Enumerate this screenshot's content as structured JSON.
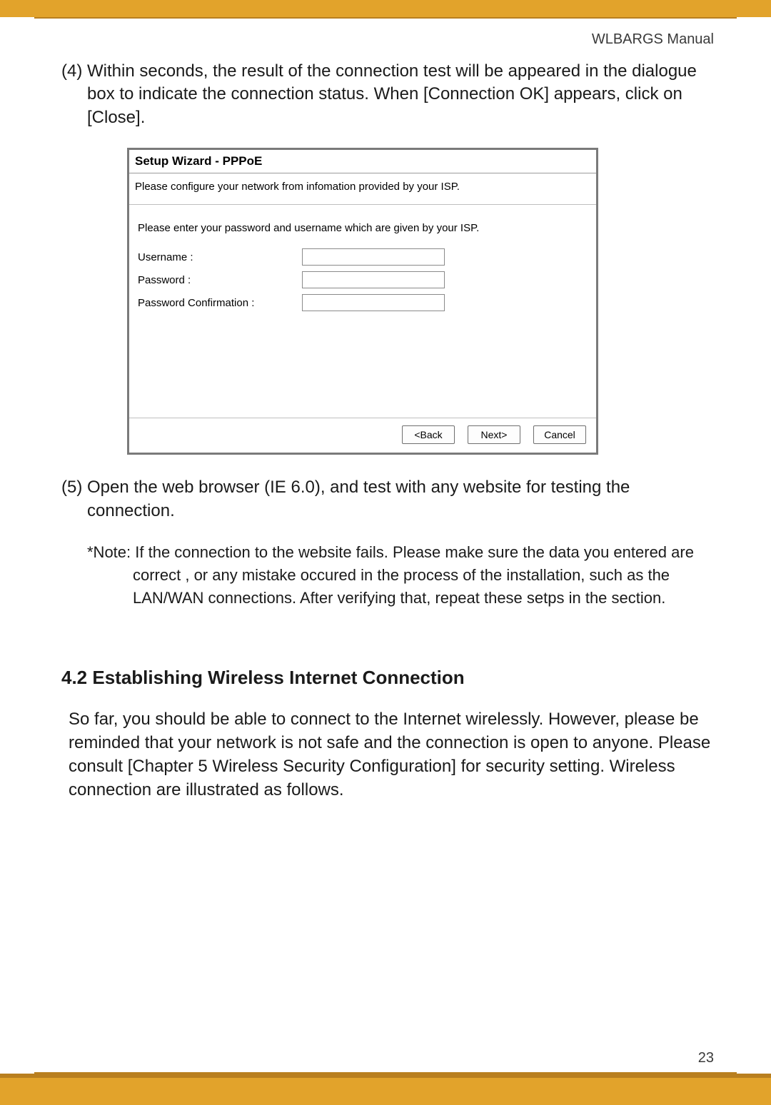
{
  "colors": {
    "band": "#e2a32b",
    "band_dark": "#b97f1f",
    "text": "#1a1a1a",
    "page_bg": "#ffffff"
  },
  "header": {
    "label": "WLBARGS Manual"
  },
  "footer": {
    "page_number": "23"
  },
  "step4": {
    "text": "(4) Within seconds, the result of the connection test will be appeared in the dialogue box to indicate the connection status. When [Connection OK] appears, click on [Close]."
  },
  "wizard": {
    "title": "Setup Wizard - PPPoE",
    "subtitle": "Please configure your network from infomation provided by your ISP.",
    "instruction": "Please enter your password and username which are given by your ISP.",
    "fields": {
      "username_label": "Username :",
      "password_label": "Password :",
      "password_confirm_label": "Password Confirmation :"
    },
    "buttons": {
      "back": "<Back",
      "next": "Next>",
      "cancel": "Cancel"
    }
  },
  "step5": {
    "text": "(5) Open the web browser (IE 6.0), and test with any website for testing the connection."
  },
  "note": {
    "text": "*Note: If the connection to the website fails. Please make sure the data you entered are correct , or any mistake occured in the process of the installation, such as the LAN/WAN connections. After verifying that, repeat these setps in the section."
  },
  "section": {
    "heading": "4.2 Establishing Wireless Internet Connection",
    "body": "So far, you should be able to connect to the Internet wirelessly. However, please be reminded that your network is not safe and the connection is open to anyone. Please consult [Chapter 5 Wireless Security Configuration] for security setting. Wireless connection are illustrated as follows."
  }
}
